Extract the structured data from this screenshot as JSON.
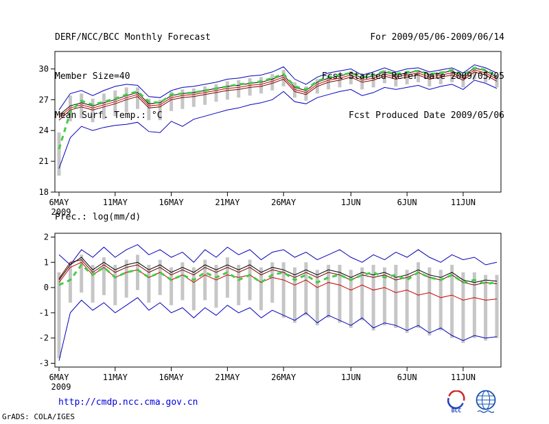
{
  "header": {
    "title": "DERF/NCC/BCC Monthly Forecast",
    "member_size": "Member Size=40",
    "for_range": "For 2009/05/06-2009/06/14",
    "fcst_started": "Fcst Started Refer Date 2009/05/05",
    "fcst_produced": "Fcst Produced Date 2009/05/06"
  },
  "footer": {
    "url": "http://cmdp.ncc.cma.gov.cn",
    "grads_credit": "GrADS: COLA/IGES",
    "bcc_label": "BCC",
    "logos": [
      "bcc-logo",
      "ncc-logo"
    ]
  },
  "colors": {
    "envelope_blue": "#0000bb",
    "mean_red": "#cc0000",
    "control_darkred": "#7a0000",
    "median_black": "#000000",
    "climatology_green": "#44cc44",
    "spread_gray": "#c6c6c6",
    "url_blue": "#0000dd",
    "axis_black": "#000000"
  },
  "chart_data": [
    {
      "type": "line",
      "title": "Mean Surf. Temp.: °C",
      "xlabel": "",
      "ylabel": "°C",
      "ylim": [
        18,
        31.7
      ],
      "yticks": [
        18,
        21,
        24,
        27,
        30
      ],
      "grid": false,
      "legend": "none",
      "xticks": [
        {
          "i": 0,
          "label": "6MAY",
          "sublabel": "2009"
        },
        {
          "i": 5,
          "label": "11MAY"
        },
        {
          "i": 10,
          "label": "16MAY"
        },
        {
          "i": 15,
          "label": "21MAY"
        },
        {
          "i": 20,
          "label": "26MAY"
        },
        {
          "i": 26,
          "label": "1JUN"
        },
        {
          "i": 31,
          "label": "6JUN"
        },
        {
          "i": 36,
          "label": "11JUN"
        }
      ],
      "bars": {
        "name": "ensemble-spread",
        "color": "#c6c6c6",
        "upper": [
          23.8,
          27.4,
          27.6,
          27.1,
          27.6,
          27.9,
          28.2,
          28.2,
          27.1,
          27.0,
          27.8,
          28.0,
          28.1,
          28.3,
          28.5,
          28.8,
          28.9,
          29.1,
          29.2,
          29.5,
          29.9,
          28.7,
          28.3,
          29.0,
          29.4,
          29.6,
          29.8,
          29.3,
          29.5,
          29.9,
          29.6,
          29.8,
          29.9,
          29.6,
          29.8,
          30.0,
          29.5,
          30.2,
          29.9,
          29.4
        ],
        "lower": [
          19.6,
          24.9,
          25.2,
          24.8,
          25.1,
          25.4,
          25.8,
          26.1,
          25.0,
          25.0,
          25.9,
          26.1,
          26.3,
          26.5,
          26.8,
          27.0,
          27.2,
          27.4,
          27.6,
          27.9,
          28.3,
          27.2,
          26.9,
          27.6,
          28.0,
          28.2,
          28.5,
          28.0,
          28.2,
          28.6,
          28.3,
          28.5,
          28.7,
          28.3,
          28.5,
          28.7,
          28.2,
          29.0,
          28.7,
          28.2
        ]
      },
      "series": [
        {
          "name": "ensemble-max",
          "color": "#0000bb",
          "width": 1,
          "dash": "",
          "values": [
            26.0,
            27.6,
            27.9,
            27.4,
            27.9,
            28.3,
            28.5,
            28.4,
            27.3,
            27.2,
            27.9,
            28.2,
            28.3,
            28.5,
            28.7,
            29.0,
            29.1,
            29.3,
            29.4,
            29.7,
            30.2,
            29.0,
            28.5,
            29.2,
            29.6,
            29.8,
            30.0,
            29.4,
            29.7,
            30.1,
            29.7,
            30.0,
            30.1,
            29.7,
            29.9,
            30.1,
            29.6,
            30.4,
            30.1,
            29.6
          ]
        },
        {
          "name": "ensemble-min",
          "color": "#0000bb",
          "width": 1,
          "dash": "",
          "values": [
            20.3,
            23.3,
            24.4,
            24.0,
            24.3,
            24.5,
            24.6,
            24.8,
            23.9,
            23.8,
            24.9,
            24.4,
            25.1,
            25.4,
            25.7,
            26.0,
            26.2,
            26.5,
            26.7,
            27.0,
            27.8,
            26.8,
            26.6,
            27.2,
            27.5,
            27.8,
            28.0,
            27.4,
            27.7,
            28.2,
            28.0,
            28.2,
            28.4,
            28.0,
            28.3,
            28.5,
            28.0,
            28.9,
            28.6,
            28.1
          ]
        },
        {
          "name": "ensemble-mean",
          "color": "#cc0000",
          "width": 1,
          "dash": "",
          "values": [
            25.3,
            26.2,
            26.5,
            26.2,
            26.5,
            26.8,
            27.2,
            27.5,
            26.4,
            26.5,
            27.2,
            27.4,
            27.5,
            27.7,
            27.9,
            28.1,
            28.2,
            28.4,
            28.5,
            28.8,
            29.2,
            28.0,
            27.7,
            28.5,
            28.9,
            29.1,
            29.4,
            28.9,
            29.1,
            29.5,
            29.2,
            29.4,
            29.6,
            29.2,
            29.4,
            29.6,
            29.1,
            29.9,
            29.6,
            29.0
          ]
        },
        {
          "name": "control-run",
          "color": "#7a0000",
          "width": 1,
          "dash": "",
          "values": [
            25.0,
            26.0,
            26.3,
            26.0,
            26.3,
            26.6,
            27.0,
            27.3,
            26.2,
            26.3,
            27.0,
            27.2,
            27.3,
            27.5,
            27.7,
            27.9,
            28.0,
            28.2,
            28.3,
            28.6,
            29.0,
            27.8,
            27.5,
            28.3,
            28.7,
            28.9,
            29.2,
            28.7,
            28.9,
            29.3,
            29.0,
            29.2,
            29.4,
            29.0,
            29.2,
            29.4,
            28.9,
            29.7,
            29.4,
            28.8
          ]
        },
        {
          "name": "ensemble-median",
          "color": "#000000",
          "width": 1,
          "dash": "",
          "values": [
            25.5,
            26.4,
            26.7,
            26.4,
            26.7,
            27.0,
            27.4,
            27.7,
            26.6,
            26.7,
            27.4,
            27.6,
            27.7,
            27.9,
            28.1,
            28.3,
            28.4,
            28.6,
            28.7,
            29.0,
            29.4,
            28.2,
            27.9,
            28.7,
            29.1,
            29.3,
            29.6,
            29.1,
            29.3,
            29.7,
            29.4,
            29.6,
            29.8,
            29.4,
            29.6,
            29.8,
            29.3,
            30.1,
            29.8,
            29.2
          ]
        },
        {
          "name": "climatology",
          "color": "#44cc44",
          "width": 3,
          "dash": "7 6",
          "values": [
            22.2,
            25.8,
            26.9,
            26.5,
            26.8,
            27.1,
            27.5,
            27.8,
            26.8,
            26.7,
            27.5,
            27.6,
            27.7,
            27.9,
            28.1,
            28.3,
            28.5,
            28.6,
            28.8,
            29.1,
            29.5,
            28.3,
            28.0,
            28.8,
            29.2,
            29.4,
            29.6,
            29.2,
            29.4,
            29.8,
            29.5,
            29.7,
            29.8,
            29.5,
            29.6,
            29.9,
            29.4,
            30.1,
            29.9,
            29.3
          ]
        }
      ]
    },
    {
      "type": "line",
      "title": "Prec.: log(mm/d)",
      "xlabel": "",
      "ylabel": "log(mm/d)",
      "ylim": [
        -3.15,
        2.15
      ],
      "yticks": [
        -3,
        -2,
        -1,
        0,
        1,
        2
      ],
      "grid": false,
      "legend": "none",
      "xticks": [
        {
          "i": 0,
          "label": "6MAY",
          "sublabel": "2009"
        },
        {
          "i": 5,
          "label": "11MAY"
        },
        {
          "i": 10,
          "label": "16MAY"
        },
        {
          "i": 15,
          "label": "21MAY"
        },
        {
          "i": 20,
          "label": "26MAY"
        },
        {
          "i": 26,
          "label": "1JUN"
        },
        {
          "i": 31,
          "label": "6JUN"
        },
        {
          "i": 36,
          "label": "11JUN"
        }
      ],
      "bars": {
        "name": "ensemble-spread",
        "color": "#c6c6c6",
        "upper": [
          0.6,
          1.0,
          1.3,
          0.9,
          1.2,
          0.9,
          1.1,
          1.3,
          0.9,
          1.1,
          0.8,
          1.0,
          0.8,
          1.1,
          0.9,
          1.2,
          0.9,
          1.1,
          0.8,
          1.0,
          1.0,
          0.8,
          1.0,
          0.7,
          0.9,
          0.9,
          0.7,
          0.8,
          0.9,
          0.8,
          0.9,
          0.7,
          1.0,
          0.8,
          0.7,
          0.9,
          0.6,
          0.6,
          0.5,
          0.5
        ],
        "lower": [
          -2.8,
          -0.6,
          -0.2,
          -0.6,
          -0.3,
          -0.7,
          -0.4,
          -0.1,
          -0.6,
          -0.3,
          -0.7,
          -0.5,
          -0.9,
          -0.5,
          -0.8,
          -0.4,
          -0.7,
          -0.5,
          -0.9,
          -0.6,
          -1.2,
          -1.4,
          -1.1,
          -1.5,
          -1.2,
          -1.4,
          -1.6,
          -1.3,
          -1.7,
          -1.5,
          -1.6,
          -1.8,
          -1.6,
          -1.9,
          -1.7,
          -2.0,
          -2.2,
          -2.0,
          -2.1,
          -2.0
        ]
      },
      "series": [
        {
          "name": "ensemble-max",
          "color": "#0000bb",
          "width": 1,
          "dash": "",
          "values": [
            1.3,
            0.9,
            1.5,
            1.2,
            1.6,
            1.2,
            1.5,
            1.7,
            1.3,
            1.5,
            1.2,
            1.4,
            1.0,
            1.5,
            1.2,
            1.6,
            1.3,
            1.5,
            1.1,
            1.4,
            1.5,
            1.2,
            1.4,
            1.1,
            1.3,
            1.5,
            1.2,
            1.0,
            1.3,
            1.1,
            1.4,
            1.2,
            1.5,
            1.2,
            1.0,
            1.3,
            1.1,
            1.2,
            0.9,
            1.0
          ]
        },
        {
          "name": "ensemble-min",
          "color": "#0000bb",
          "width": 1,
          "dash": "",
          "values": [
            -2.9,
            -1.0,
            -0.5,
            -0.9,
            -0.6,
            -1.0,
            -0.7,
            -0.4,
            -0.9,
            -0.6,
            -1.0,
            -0.8,
            -1.2,
            -0.8,
            -1.1,
            -0.7,
            -1.0,
            -0.8,
            -1.2,
            -0.9,
            -1.1,
            -1.3,
            -1.0,
            -1.4,
            -1.1,
            -1.3,
            -1.5,
            -1.2,
            -1.6,
            -1.4,
            -1.5,
            -1.7,
            -1.5,
            -1.8,
            -1.6,
            -1.9,
            -2.1,
            -1.9,
            -2.0,
            -1.95
          ]
        },
        {
          "name": "ensemble-mean",
          "color": "#cc0000",
          "width": 1,
          "dash": "",
          "values": [
            0.2,
            0.8,
            1.0,
            0.5,
            0.8,
            0.4,
            0.6,
            0.7,
            0.4,
            0.6,
            0.3,
            0.5,
            0.2,
            0.5,
            0.3,
            0.5,
            0.4,
            0.5,
            0.2,
            0.4,
            0.3,
            0.1,
            0.3,
            0.0,
            0.2,
            0.1,
            -0.1,
            0.1,
            -0.1,
            0.0,
            -0.2,
            -0.1,
            -0.3,
            -0.2,
            -0.4,
            -0.3,
            -0.5,
            -0.4,
            -0.5,
            -0.45
          ]
        },
        {
          "name": "control-run",
          "color": "#7a0000",
          "width": 1,
          "dash": "",
          "values": [
            0.35,
            1.0,
            1.1,
            0.6,
            0.9,
            0.6,
            0.8,
            0.9,
            0.6,
            0.8,
            0.5,
            0.7,
            0.5,
            0.8,
            0.6,
            0.8,
            0.6,
            0.8,
            0.5,
            0.7,
            0.6,
            0.4,
            0.6,
            0.4,
            0.6,
            0.5,
            0.3,
            0.5,
            0.4,
            0.5,
            0.3,
            0.4,
            0.6,
            0.4,
            0.3,
            0.5,
            0.2,
            0.1,
            0.2,
            0.15
          ]
        },
        {
          "name": "ensemble-median",
          "color": "#000000",
          "width": 1,
          "dash": "",
          "values": [
            0.3,
            0.9,
            1.2,
            0.7,
            1.0,
            0.7,
            0.9,
            1.0,
            0.7,
            0.9,
            0.6,
            0.8,
            0.6,
            0.9,
            0.7,
            0.9,
            0.7,
            0.9,
            0.6,
            0.8,
            0.7,
            0.5,
            0.7,
            0.5,
            0.7,
            0.6,
            0.4,
            0.6,
            0.5,
            0.6,
            0.4,
            0.5,
            0.7,
            0.5,
            0.4,
            0.6,
            0.3,
            0.2,
            0.3,
            0.25
          ]
        },
        {
          "name": "climatology",
          "color": "#44cc44",
          "width": 3,
          "dash": "7 6",
          "values": [
            0.1,
            0.3,
            0.9,
            0.5,
            0.8,
            0.4,
            0.6,
            0.7,
            0.4,
            0.6,
            0.3,
            0.5,
            0.3,
            0.6,
            0.4,
            0.6,
            0.3,
            0.5,
            0.2,
            0.5,
            0.6,
            0.3,
            0.5,
            0.2,
            0.4,
            0.5,
            0.3,
            0.5,
            0.6,
            0.4,
            0.5,
            0.3,
            0.6,
            0.4,
            0.3,
            0.5,
            0.2,
            0.3,
            0.15,
            0.2
          ]
        }
      ]
    }
  ]
}
